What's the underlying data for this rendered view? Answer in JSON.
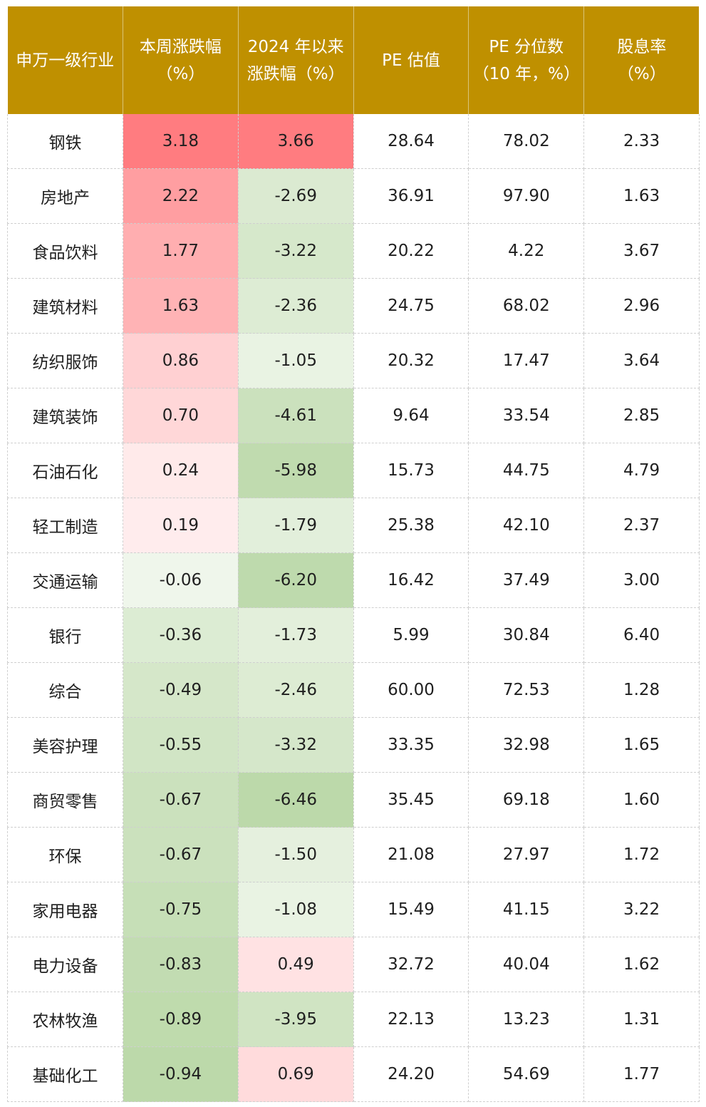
{
  "headers": {
    "industry": [
      "申万一级行业"
    ],
    "week_change": [
      "本周涨跌幅",
      "（%）"
    ],
    "ytd_change": [
      "2024 年以来",
      "涨跌幅（%）"
    ],
    "pe": [
      "PE 估值"
    ],
    "pe_pct": [
      "PE 分位数",
      "（10 年，%）"
    ],
    "dividend": [
      "股息率",
      "（%）"
    ]
  },
  "colors": {
    "header_bg": "#bf9000",
    "header_text": "#ffffff",
    "positive_strong": "#ff7c80",
    "positive_light": "#ffe1e3",
    "negative_strong": "#bcd9aa",
    "negative_light": "#f1f7ee"
  },
  "rows": [
    {
      "industry": "钢铁",
      "week": "3.18",
      "ytd": "3.66",
      "pe": "28.64",
      "pe_pct": "78.02",
      "div": "2.33"
    },
    {
      "industry": "房地产",
      "week": "2.22",
      "ytd": "-2.69",
      "pe": "36.91",
      "pe_pct": "97.90",
      "div": "1.63"
    },
    {
      "industry": "食品饮料",
      "week": "1.77",
      "ytd": "-3.22",
      "pe": "20.22",
      "pe_pct": "4.22",
      "div": "3.67"
    },
    {
      "industry": "建筑材料",
      "week": "1.63",
      "ytd": "-2.36",
      "pe": "24.75",
      "pe_pct": "68.02",
      "div": "2.96"
    },
    {
      "industry": "纺织服饰",
      "week": "0.86",
      "ytd": "-1.05",
      "pe": "20.32",
      "pe_pct": "17.47",
      "div": "3.64"
    },
    {
      "industry": "建筑装饰",
      "week": "0.70",
      "ytd": "-4.61",
      "pe": "9.64",
      "pe_pct": "33.54",
      "div": "2.85"
    },
    {
      "industry": "石油石化",
      "week": "0.24",
      "ytd": "-5.98",
      "pe": "15.73",
      "pe_pct": "44.75",
      "div": "4.79"
    },
    {
      "industry": "轻工制造",
      "week": "0.19",
      "ytd": "-1.79",
      "pe": "25.38",
      "pe_pct": "42.10",
      "div": "2.37"
    },
    {
      "industry": "交通运输",
      "week": "-0.06",
      "ytd": "-6.20",
      "pe": "16.42",
      "pe_pct": "37.49",
      "div": "3.00"
    },
    {
      "industry": "银行",
      "week": "-0.36",
      "ytd": "-1.73",
      "pe": "5.99",
      "pe_pct": "30.84",
      "div": "6.40"
    },
    {
      "industry": "综合",
      "week": "-0.49",
      "ytd": "-2.46",
      "pe": "60.00",
      "pe_pct": "72.53",
      "div": "1.28"
    },
    {
      "industry": "美容护理",
      "week": "-0.55",
      "ytd": "-3.32",
      "pe": "33.35",
      "pe_pct": "32.98",
      "div": "1.65"
    },
    {
      "industry": "商贸零售",
      "week": "-0.67",
      "ytd": "-6.46",
      "pe": "35.45",
      "pe_pct": "69.18",
      "div": "1.60"
    },
    {
      "industry": "环保",
      "week": "-0.67",
      "ytd": "-1.50",
      "pe": "21.08",
      "pe_pct": "27.97",
      "div": "1.72"
    },
    {
      "industry": "家用电器",
      "week": "-0.75",
      "ytd": "-1.08",
      "pe": "15.49",
      "pe_pct": "41.15",
      "div": "3.22"
    },
    {
      "industry": "电力设备",
      "week": "-0.83",
      "ytd": "0.49",
      "pe": "32.72",
      "pe_pct": "40.04",
      "div": "1.62"
    },
    {
      "industry": "农林牧渔",
      "week": "-0.89",
      "ytd": "-3.95",
      "pe": "22.13",
      "pe_pct": "13.23",
      "div": "1.31"
    },
    {
      "industry": "基础化工",
      "week": "-0.94",
      "ytd": "0.69",
      "pe": "24.20",
      "pe_pct": "54.69",
      "div": "1.77"
    }
  ]
}
